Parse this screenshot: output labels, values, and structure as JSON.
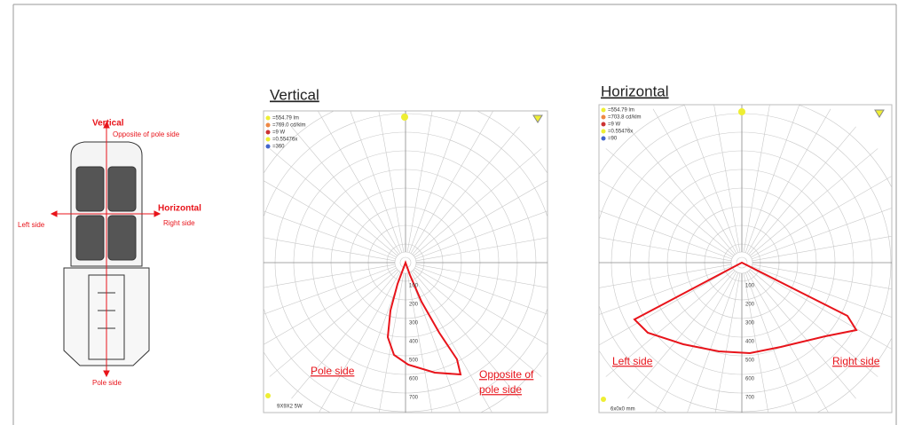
{
  "product_diagram": {
    "vertical": "Vertical",
    "opposite": "Opposite of pole side",
    "horizontal": "Horizontal",
    "right": "Right side",
    "left": "Left side",
    "pole": "Pole side"
  },
  "vertical_plot": {
    "title": "Vertical",
    "legend": [
      "=554.79 lm",
      "=769.0 cd/klm",
      "=9 W",
      "=0.55476x",
      "=360"
    ],
    "radial_labels": [
      100,
      200,
      300,
      400,
      500,
      600,
      700
    ],
    "annotations": [
      "Pole side",
      "Opposite of",
      "pole side"
    ],
    "footer": "9X9X2 5W"
  },
  "horizontal_plot": {
    "title": "Horizontal",
    "legend": [
      "=554.79 lm",
      "=703.8 cd/klm",
      "=9 W",
      "=0.55476x",
      "=90"
    ],
    "radial_labels": [
      100,
      200,
      300,
      400,
      500,
      600,
      700
    ],
    "annotations": [
      "Left side",
      "Right side"
    ],
    "footer": "6x0x0 mm"
  }
}
